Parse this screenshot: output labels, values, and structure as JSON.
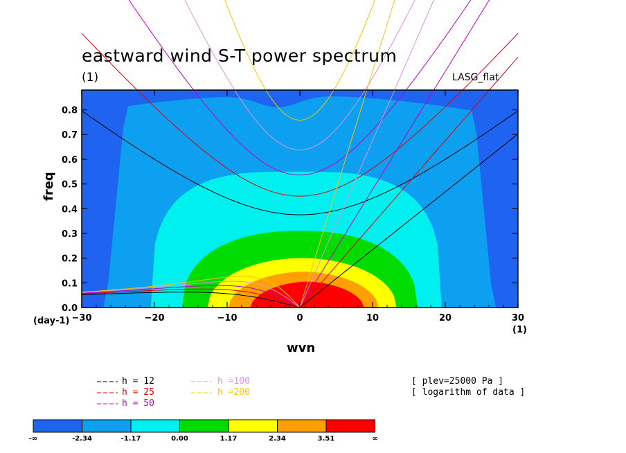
{
  "chart_data": {
    "type": "heatmap",
    "title": "eastward wind S-T power spectrum",
    "subtitle": "(1)",
    "dataset_label": "LASG_flat",
    "xlabel": "wvn",
    "x_unit_left": "(day-1)",
    "x_unit_right": "(1)",
    "ylabel": "freq",
    "xlim": [
      -30,
      30
    ],
    "ylim": [
      0,
      0.88
    ],
    "x_ticks": [
      -30,
      -20,
      -10,
      0,
      10,
      20,
      30
    ],
    "x_tick_labels": [
      "−30",
      "−20",
      "−10",
      "0",
      "10",
      "20",
      "30"
    ],
    "y_ticks": [
      0.0,
      0.1,
      0.2,
      0.3,
      0.4,
      0.5,
      0.6,
      0.7,
      0.8
    ],
    "y_tick_labels": [
      "0.0",
      "0.1",
      "0.2",
      "0.3",
      "0.4",
      "0.5",
      "0.6",
      "0.7",
      "0.8"
    ],
    "contour_levels": [
      -2.34,
      -1.17,
      0.0,
      1.17,
      2.34,
      3.51
    ],
    "colorbar_labels": [
      "-∞",
      "-2.34",
      "-1.17",
      "0.00",
      "1.17",
      "2.34",
      "3.51",
      "∞"
    ],
    "colors": [
      "#1e64f0",
      "#0ea0f0",
      "#00f0f0",
      "#00dc00",
      "#ffff00",
      "#ffa000",
      "#ff0000"
    ],
    "dispersion_curves": [
      {
        "label": "h = 12",
        "h": 12,
        "color": "#000000"
      },
      {
        "label": "h = 25",
        "h": 25,
        "color": "#e00000"
      },
      {
        "label": "h = 50",
        "h": 50,
        "color": "#c000c0"
      },
      {
        "label": "h =100",
        "h": 100,
        "color": "#e090e0"
      },
      {
        "label": "h =200",
        "h": 200,
        "color": "#f0c800"
      }
    ],
    "notes": [
      "[ plev=25000 Pa ]",
      "[ logarithm of data ]"
    ]
  }
}
